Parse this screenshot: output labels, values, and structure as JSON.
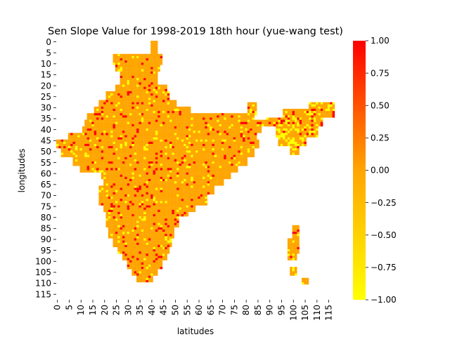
{
  "chart_data": {
    "type": "heatmap",
    "title": "Sen Slope Value for 1998-2019 18th hour (yue-wang test)",
    "xlabel": "latitudes",
    "ylabel": "longitudes",
    "x_ticks": [
      0,
      5,
      10,
      15,
      20,
      25,
      30,
      35,
      40,
      45,
      50,
      55,
      60,
      65,
      70,
      75,
      80,
      85,
      90,
      95,
      100,
      105,
      110,
      115
    ],
    "y_ticks": [
      0,
      5,
      10,
      15,
      20,
      25,
      30,
      35,
      40,
      45,
      50,
      55,
      60,
      65,
      70,
      75,
      80,
      85,
      90,
      95,
      100,
      105,
      110,
      115
    ],
    "grid_size": [
      118,
      118
    ],
    "colorbar": {
      "min": -1.0,
      "max": 1.0,
      "ticks": [
        "1.00",
        "0.75",
        "0.50",
        "0.25",
        "0.00",
        "−0.25",
        "−0.50",
        "−0.75",
        "−1.00"
      ],
      "colors": [
        "#ffff00",
        "#ffa500",
        "#ff0000"
      ]
    },
    "value_classes": {
      "red": 1.0,
      "orange": 0.0,
      "yellow": -1.0
    },
    "regions_note_values": "Most cells ~0.0 (orange); scattered cells at +1.0 (red) and -1.0 (yellow)"
  }
}
